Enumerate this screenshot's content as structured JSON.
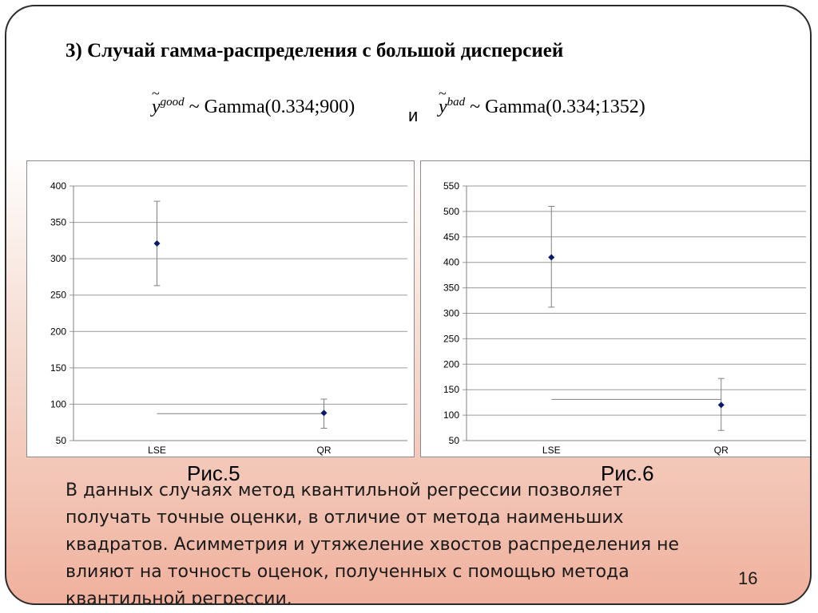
{
  "slide": {
    "title": "3) Случай гамма-распределения с большой дисперсией",
    "formula_left": {
      "var": "y",
      "sup": "good",
      "expr": "~ Gamma(0.334;900)"
    },
    "conjunction": "и",
    "formula_right": {
      "var": "y",
      "sup": "bad",
      "expr": "~ Gamma(0.334;1352)"
    },
    "fig_labels": [
      "Рис.5",
      "Рис.6"
    ],
    "body_lines": [
      "В данных случаях метод квантильной регрессии позволяет",
      "получать точные оценки,  в отличие от метода наименьших",
      "квадратов. Асимметрия и утяжеление хвостов распределения не",
      "влияют на точность оценок, полученных с помощью метода",
      "квантильной регрессии."
    ],
    "page_number": "16"
  },
  "colors": {
    "marker": "#0a1a6b",
    "errorbar": "#808080",
    "gridline": "#9a9a9a",
    "reference_line": "#808080"
  },
  "chart_data": [
    {
      "type": "scatter",
      "title": "",
      "categories": [
        "LSE",
        "QR"
      ],
      "ylim": [
        50,
        400
      ],
      "yticks": [
        50,
        100,
        150,
        200,
        250,
        300,
        350,
        400
      ],
      "grid": "horizontal",
      "series": [
        {
          "values": [
            321,
            88
          ],
          "error_low": [
            263,
            67
          ],
          "error_high": [
            379,
            107
          ]
        }
      ],
      "reference_line": {
        "value": 87,
        "from": "LSE",
        "to": "QR"
      }
    },
    {
      "type": "scatter",
      "title": "",
      "categories": [
        "LSE",
        "QR"
      ],
      "ylim": [
        50,
        550
      ],
      "yticks": [
        50,
        100,
        150,
        200,
        250,
        300,
        350,
        400,
        450,
        500,
        550
      ],
      "grid": "horizontal",
      "series": [
        {
          "values": [
            410,
            120
          ],
          "error_low": [
            312,
            70
          ],
          "error_high": [
            510,
            172
          ]
        }
      ],
      "reference_line": {
        "value": 131,
        "from": "LSE",
        "to": "QR"
      }
    }
  ]
}
